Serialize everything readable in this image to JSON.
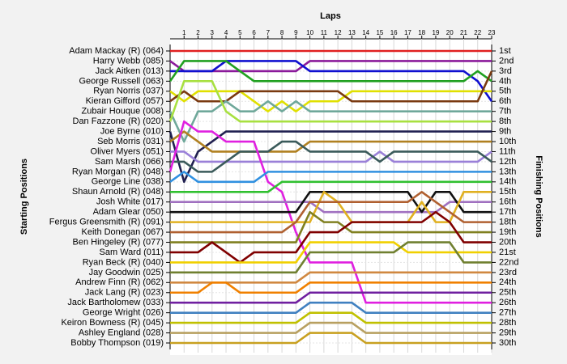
{
  "chart_data": {
    "type": "line",
    "xlabel": "Laps",
    "ylabel": "Starting Positions",
    "y2label": "Finishing Positions",
    "x": [
      0,
      1,
      2,
      3,
      4,
      5,
      6,
      7,
      8,
      9,
      10,
      11,
      12,
      13,
      14,
      15,
      16,
      17,
      18,
      19,
      20,
      21,
      22,
      23
    ],
    "xlim": [
      0,
      23
    ],
    "xticks": [
      1,
      2,
      3,
      4,
      5,
      6,
      7,
      8,
      9,
      10,
      11,
      12,
      13,
      14,
      15,
      16,
      17,
      18,
      19,
      20,
      21,
      22,
      23
    ],
    "ylim": [
      1,
      30
    ],
    "y_inverted": true,
    "grid": true,
    "y2lim": [
      1,
      30
    ],
    "y2ticks": [
      {
        "value": 1,
        "label": "1st"
      },
      {
        "value": 2,
        "label": "2nd"
      },
      {
        "value": 3,
        "label": "3rd"
      },
      {
        "value": 4,
        "label": "4th"
      },
      {
        "value": 5,
        "label": "5th"
      },
      {
        "value": 6,
        "label": "6th"
      },
      {
        "value": 7,
        "label": "7th"
      },
      {
        "value": 8,
        "label": "8th"
      },
      {
        "value": 9,
        "label": "9th"
      },
      {
        "value": 10,
        "label": "10th"
      },
      {
        "value": 11,
        "label": "11th"
      },
      {
        "value": 12,
        "label": "12th"
      },
      {
        "value": 13,
        "label": "13th"
      },
      {
        "value": 14,
        "label": "14th"
      },
      {
        "value": 15,
        "label": "15th"
      },
      {
        "value": 16,
        "label": "16th"
      },
      {
        "value": 17,
        "label": "17th"
      },
      {
        "value": 18,
        "label": "18th"
      },
      {
        "value": 19,
        "label": "19th"
      },
      {
        "value": 20,
        "label": "20th"
      },
      {
        "value": 21,
        "label": "21st"
      },
      {
        "value": 22,
        "label": "22nd"
      },
      {
        "value": 23,
        "label": "23rd"
      },
      {
        "value": 24,
        "label": "24th"
      },
      {
        "value": 25,
        "label": "25th"
      },
      {
        "value": 26,
        "label": "26th"
      },
      {
        "value": 27,
        "label": "27th"
      },
      {
        "value": 28,
        "label": "28th"
      },
      {
        "value": 29,
        "label": "29th"
      },
      {
        "value": 30,
        "label": "30th"
      }
    ],
    "series": [
      {
        "name": "Adam Mackay (R) (064)",
        "color": "#e02020",
        "values": [
          1,
          1,
          1,
          1,
          1,
          1,
          1,
          1,
          1,
          1,
          1,
          1,
          1,
          1,
          1,
          1,
          1,
          1,
          1,
          1,
          1,
          1,
          1,
          1
        ]
      },
      {
        "name": "Harry Webb (085)",
        "color": "#8b1a9b",
        "values": [
          2,
          3,
          3,
          3,
          3,
          3,
          3,
          3,
          3,
          3,
          2,
          2,
          2,
          2,
          2,
          2,
          2,
          2,
          2,
          2,
          2,
          2,
          2,
          2
        ]
      },
      {
        "name": "Jack Aitken (013)",
        "color": "#1010d0",
        "values": [
          3,
          3,
          3,
          3,
          2,
          2,
          2,
          2,
          2,
          2,
          3,
          3,
          3,
          3,
          3,
          3,
          3,
          3,
          3,
          3,
          3,
          3,
          4,
          6
        ]
      },
      {
        "name": "George Russell (063)",
        "color": "#20a020",
        "values": [
          4,
          2,
          2,
          2,
          2,
          3,
          4,
          4,
          4,
          4,
          4,
          4,
          4,
          4,
          4,
          4,
          4,
          4,
          4,
          4,
          4,
          4,
          3,
          4
        ]
      },
      {
        "name": "Ryan Norris (037)",
        "color": "#e0e000",
        "values": [
          5,
          6,
          5,
          5,
          5,
          5,
          6,
          7,
          6,
          7,
          6,
          6,
          6,
          5,
          5,
          5,
          5,
          5,
          5,
          5,
          5,
          5,
          5,
          5
        ]
      },
      {
        "name": "Kieran Gifford (057)",
        "color": "#7a3a10",
        "values": [
          6,
          5,
          6,
          6,
          6,
          5,
          5,
          5,
          5,
          5,
          5,
          5,
          5,
          6,
          6,
          6,
          6,
          6,
          6,
          6,
          6,
          6,
          6,
          3
        ]
      },
      {
        "name": "Zubair Houque (008)",
        "color": "#6fa89a",
        "values": [
          7,
          10,
          7,
          7,
          6,
          7,
          7,
          6,
          7,
          6,
          7,
          7,
          7,
          7,
          7,
          7,
          7,
          7,
          7,
          7,
          7,
          7,
          7,
          7
        ]
      },
      {
        "name": "Dan Fazzone (R) (020)",
        "color": "#a8e040",
        "values": [
          8,
          4,
          4,
          4,
          7,
          8,
          8,
          8,
          8,
          8,
          8,
          8,
          8,
          8,
          8,
          8,
          8,
          8,
          8,
          8,
          8,
          8,
          8,
          8
        ]
      },
      {
        "name": "Joe Byrne (010)",
        "color": "#202050",
        "values": [
          9,
          14,
          11,
          10,
          9,
          9,
          9,
          9,
          9,
          9,
          9,
          9,
          9,
          9,
          9,
          9,
          9,
          9,
          9,
          9,
          9,
          9,
          9,
          9
        ]
      },
      {
        "name": "Seb Morris (031)",
        "color": "#b08020",
        "values": [
          10,
          9,
          10,
          11,
          11,
          11,
          11,
          11,
          11,
          11,
          10,
          10,
          10,
          10,
          10,
          10,
          10,
          10,
          10,
          10,
          10,
          10,
          10,
          10
        ]
      },
      {
        "name": "Oliver Myers (051)",
        "color": "#9a80d8",
        "values": [
          11,
          11,
          12,
          12,
          12,
          12,
          12,
          12,
          12,
          12,
          12,
          12,
          12,
          12,
          12,
          11,
          12,
          12,
          12,
          12,
          12,
          12,
          12,
          11
        ]
      },
      {
        "name": "Sam Marsh (066)",
        "color": "#3a5a5a",
        "values": [
          12,
          12,
          13,
          13,
          12,
          11,
          11,
          11,
          10,
          10,
          11,
          11,
          11,
          11,
          11,
          12,
          11,
          11,
          11,
          11,
          11,
          11,
          11,
          12
        ]
      },
      {
        "name": "Ryan Morgan (R) (048)",
        "color": "#e020e0",
        "values": [
          13,
          8,
          9,
          9,
          10,
          10,
          10,
          14,
          15,
          19,
          22,
          22,
          22,
          22,
          26,
          26,
          26,
          26,
          26,
          26,
          26,
          26,
          26,
          26
        ]
      },
      {
        "name": "George Line (038)",
        "color": "#3090e0",
        "values": [
          14,
          13,
          14,
          14,
          14,
          14,
          14,
          13,
          13,
          13,
          13,
          13,
          13,
          13,
          13,
          13,
          13,
          13,
          13,
          13,
          13,
          13,
          13,
          13
        ]
      },
      {
        "name": "Shaun Arnold (R) (048)",
        "color": "#30c030",
        "values": [
          15,
          15,
          15,
          15,
          15,
          15,
          15,
          15,
          14,
          14,
          14,
          14,
          14,
          14,
          14,
          14,
          14,
          14,
          14,
          14,
          14,
          14,
          14,
          14
        ]
      },
      {
        "name": "Josh White (017)",
        "color": "#a070c0",
        "values": [
          16,
          16,
          16,
          16,
          16,
          16,
          16,
          16,
          16,
          16,
          16,
          17,
          17,
          17,
          17,
          17,
          17,
          17,
          17,
          17,
          16,
          16,
          16,
          16
        ]
      },
      {
        "name": "Adam Glear (050)",
        "color": "#101010",
        "values": [
          17,
          17,
          17,
          17,
          17,
          17,
          17,
          17,
          17,
          17,
          15,
          15,
          15,
          15,
          15,
          15,
          15,
          15,
          17,
          15,
          15,
          17,
          17,
          17
        ]
      },
      {
        "name": "Fergus Greensmith (R) (091)",
        "color": "#e0b020",
        "values": [
          18,
          18,
          18,
          18,
          18,
          18,
          18,
          18,
          18,
          18,
          18,
          15,
          16,
          18,
          18,
          18,
          18,
          18,
          16,
          18,
          18,
          15,
          15,
          15
        ]
      },
      {
        "name": "Keith Donegan (067)",
        "color": "#b06030",
        "values": [
          19,
          19,
          19,
          19,
          19,
          19,
          19,
          19,
          19,
          18,
          16,
          16,
          16,
          16,
          16,
          16,
          16,
          16,
          15,
          16,
          17,
          18,
          18,
          18
        ]
      },
      {
        "name": "Ben Hingeley (R) (077)",
        "color": "#808020",
        "values": [
          20,
          20,
          20,
          20,
          20,
          20,
          20,
          20,
          20,
          20,
          17,
          18,
          18,
          19,
          19,
          19,
          19,
          19,
          19,
          19,
          19,
          19,
          19,
          19
        ]
      },
      {
        "name": "Sam Ward (011)",
        "color": "#800000",
        "values": [
          21,
          21,
          21,
          20,
          21,
          22,
          21,
          21,
          21,
          21,
          19,
          19,
          19,
          18,
          18,
          18,
          18,
          18,
          18,
          17,
          18,
          20,
          20,
          20
        ]
      },
      {
        "name": "Ryan Beck (R) (040)",
        "color": "#f0d000",
        "values": [
          22,
          22,
          22,
          22,
          22,
          22,
          22,
          22,
          22,
          22,
          20,
          20,
          20,
          20,
          20,
          20,
          20,
          21,
          21,
          21,
          21,
          21,
          21,
          21
        ]
      },
      {
        "name": "Jay Goodwin (025)",
        "color": "#708030",
        "values": [
          23,
          23,
          23,
          23,
          23,
          23,
          23,
          23,
          23,
          23,
          21,
          21,
          21,
          21,
          21,
          21,
          21,
          20,
          20,
          20,
          20,
          22,
          22,
          22
        ]
      },
      {
        "name": "Andrew Finn (R) (062)",
        "color": "#d08840",
        "values": [
          24,
          24,
          24,
          24,
          24,
          24,
          24,
          24,
          24,
          24,
          23,
          23,
          23,
          23,
          23,
          23,
          23,
          23,
          23,
          23,
          23,
          23,
          23,
          23
        ]
      },
      {
        "name": "Jack Lang (R) (023)",
        "color": "#f08000",
        "values": [
          25,
          25,
          25,
          24,
          24,
          25,
          25,
          25,
          25,
          25,
          24,
          24,
          24,
          24,
          24,
          24,
          24,
          24,
          24,
          24,
          24,
          24,
          24,
          24
        ]
      },
      {
        "name": "Jack Bartholomew (033)",
        "color": "#7020a0",
        "values": [
          26,
          26,
          26,
          26,
          26,
          26,
          26,
          26,
          26,
          26,
          25,
          25,
          25,
          25,
          25,
          25,
          25,
          25,
          25,
          25,
          25,
          25,
          25,
          25
        ]
      },
      {
        "name": "George Wright (026)",
        "color": "#4080c0",
        "values": [
          27,
          27,
          27,
          27,
          27,
          27,
          27,
          27,
          27,
          27,
          26,
          26,
          26,
          26,
          27,
          27,
          27,
          27,
          27,
          27,
          27,
          27,
          27,
          27
        ]
      },
      {
        "name": "Keiron Bowness (R) (045)",
        "color": "#c0c000",
        "values": [
          28,
          28,
          28,
          28,
          28,
          28,
          28,
          28,
          28,
          28,
          27,
          27,
          27,
          27,
          28,
          28,
          28,
          28,
          28,
          28,
          28,
          28,
          28,
          28
        ]
      },
      {
        "name": "Ashley England (028)",
        "color": "#b8a060",
        "values": [
          29,
          29,
          29,
          29,
          29,
          29,
          29,
          29,
          29,
          29,
          28,
          28,
          28,
          28,
          29,
          29,
          29,
          29,
          29,
          29,
          29,
          29,
          29,
          29
        ]
      },
      {
        "name": "Bobby Thompson (019)",
        "color": "#c8a020",
        "values": [
          30,
          30,
          30,
          30,
          30,
          30,
          30,
          30,
          30,
          30,
          29,
          29,
          29,
          29,
          30,
          30,
          30,
          30,
          30,
          30,
          30,
          30,
          30,
          30
        ]
      }
    ]
  }
}
